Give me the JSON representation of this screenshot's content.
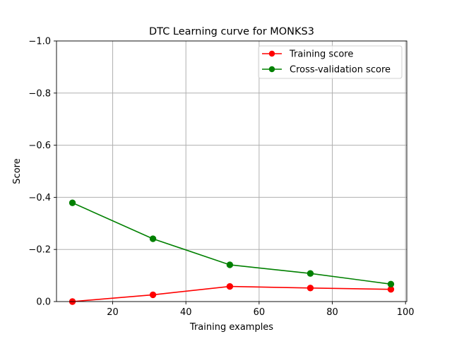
{
  "chart_data": {
    "type": "line",
    "title": "DTC Learning curve for MONKS3",
    "xlabel": "Training examples",
    "ylabel": "Score",
    "xlim": [
      4.65,
      100.35
    ],
    "ylim": [
      0.0,
      -1.0
    ],
    "y_axis_inverted": true,
    "x_ticks": [
      20,
      40,
      60,
      80,
      100
    ],
    "x_tick_labels": [
      "20",
      "40",
      "60",
      "80",
      "100"
    ],
    "y_ticks": [
      0.0,
      -0.2,
      -0.4,
      -0.6,
      -0.8,
      -1.0
    ],
    "y_tick_labels": [
      "0.0",
      "−0.2",
      "−0.4",
      "−0.6",
      "−0.8",
      "−1.0"
    ],
    "grid": true,
    "legend_position": "top-right",
    "x": [
      9,
      31,
      52,
      74,
      96
    ],
    "series": [
      {
        "name": "Training score",
        "color": "#ff0000",
        "marker": "circle",
        "values": [
          0.0,
          -0.026,
          -0.058,
          -0.052,
          -0.047
        ]
      },
      {
        "name": "Cross-validation score",
        "color": "#008000",
        "marker": "circle",
        "values": [
          -0.379,
          -0.241,
          -0.141,
          -0.108,
          -0.067
        ]
      }
    ]
  }
}
